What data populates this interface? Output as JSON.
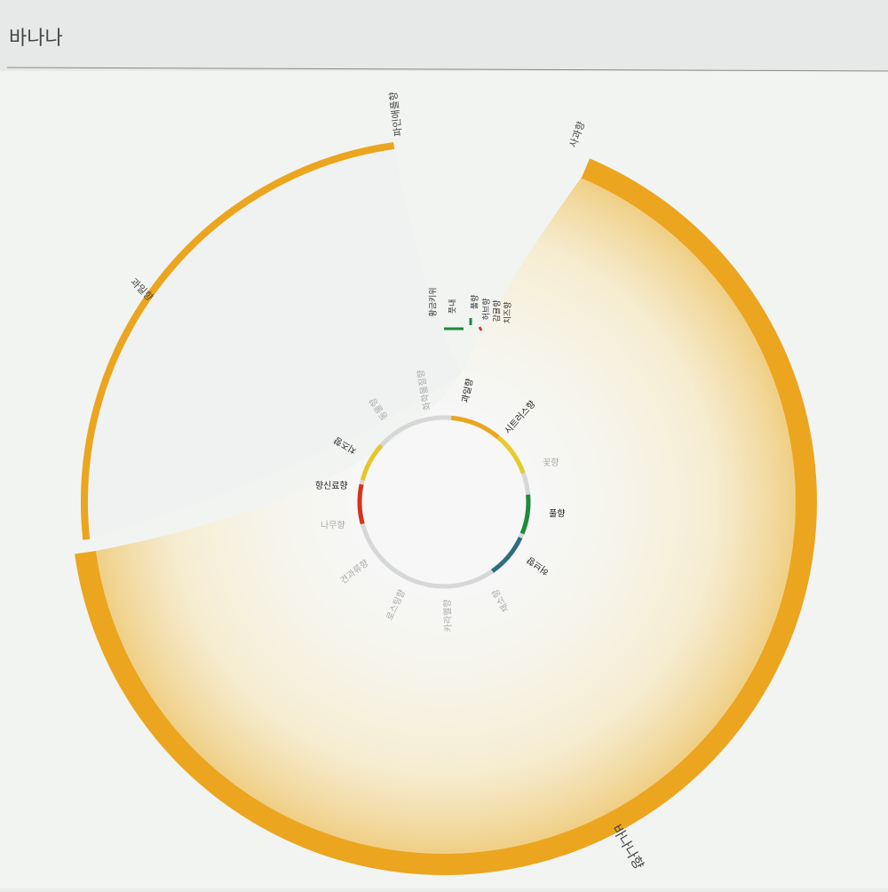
{
  "header": {
    "title": "바나나"
  },
  "outer_labels": [
    "파인애플향",
    "사과향",
    "과일향",
    "바나나향"
  ],
  "middle_labels": [
    "황금키위",
    "풋내",
    "풀향",
    "허브향",
    "감귤향",
    "치즈향"
  ],
  "inner_labels": [
    "과일향",
    "시트러스향",
    "꽃향",
    "풀향",
    "허브향",
    "채소향",
    "카라멜향",
    "로스팅향",
    "견과류향",
    "나무향",
    "향신료향",
    "치즈향",
    "동물향",
    "화학물질향"
  ]
}
